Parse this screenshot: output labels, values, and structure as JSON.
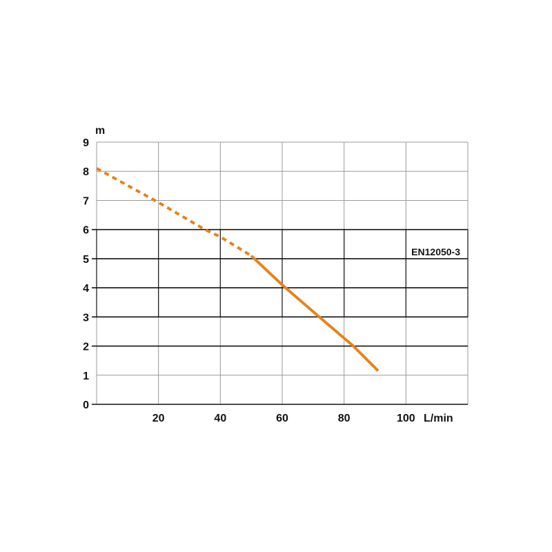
{
  "chart_data": {
    "type": "line",
    "title": "",
    "xlabel": "L/min",
    "ylabel": "m",
    "xlim": [
      0,
      120
    ],
    "ylim": [
      0,
      9
    ],
    "x_ticks": [
      "20",
      "40",
      "60",
      "80",
      "100"
    ],
    "y_ticks": [
      "0",
      "1",
      "2",
      "3",
      "4",
      "5",
      "6",
      "7",
      "8",
      "9"
    ],
    "grid": true,
    "annotation": "EN12050-3",
    "line_color": "#E8811A",
    "series": [
      {
        "style": "dashed",
        "x": [
          0,
          20,
          35,
          40,
          50
        ],
        "y": [
          8.1,
          6.93,
          6.0,
          5.75,
          5.1
        ]
      },
      {
        "style": "solid",
        "x": [
          50,
          60,
          72,
          83,
          91
        ],
        "y": [
          5.1,
          4.1,
          3.0,
          2.0,
          1.15
        ]
      }
    ]
  }
}
